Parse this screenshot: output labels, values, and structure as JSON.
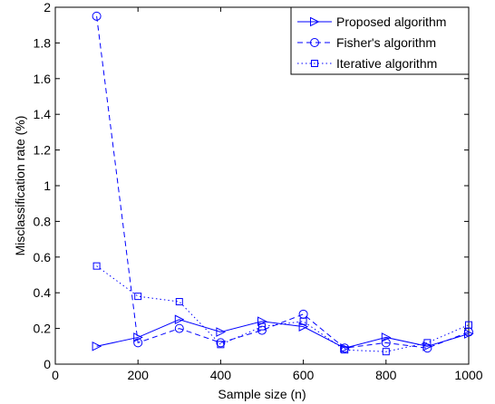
{
  "chart_data": {
    "type": "line",
    "title": "",
    "xlabel": "Sample size (n)",
    "ylabel": "Misclassification rate (%)",
    "xlim": [
      0,
      1000
    ],
    "ylim": [
      0,
      2
    ],
    "xticks": [
      0,
      200,
      400,
      600,
      800,
      1000
    ],
    "yticks": [
      0,
      0.2,
      0.4,
      0.6,
      0.8,
      1,
      1.2,
      1.4,
      1.6,
      1.8,
      2
    ],
    "xtick_labels": [
      "0",
      "200",
      "400",
      "600",
      "800",
      "1000"
    ],
    "ytick_labels": [
      "0",
      "0.2",
      "0.4",
      "0.6",
      "0.8",
      "1",
      "1.2",
      "1.4",
      "1.6",
      "1.8",
      "2"
    ],
    "grid": false,
    "legend_position": "top-right",
    "x": [
      100,
      200,
      300,
      400,
      500,
      600,
      700,
      800,
      900,
      1000
    ],
    "series": [
      {
        "name": "Proposed algorithm",
        "values": [
          0.1,
          0.15,
          0.25,
          0.18,
          0.24,
          0.21,
          0.09,
          0.15,
          0.1,
          0.17
        ],
        "color": "#0000ff",
        "line_style": "solid",
        "marker": "triangle-right"
      },
      {
        "name": "Fisher's algorithm",
        "values": [
          1.95,
          0.12,
          0.2,
          0.12,
          0.19,
          0.28,
          0.09,
          0.12,
          0.09,
          0.18
        ],
        "color": "#0000ff",
        "line_style": "dashed",
        "marker": "circle"
      },
      {
        "name": "Iterative algorithm",
        "values": [
          0.55,
          0.38,
          0.35,
          0.11,
          0.21,
          0.24,
          0.08,
          0.07,
          0.12,
          0.22
        ],
        "color": "#0000ff",
        "line_style": "dotted",
        "marker": "square"
      }
    ]
  }
}
